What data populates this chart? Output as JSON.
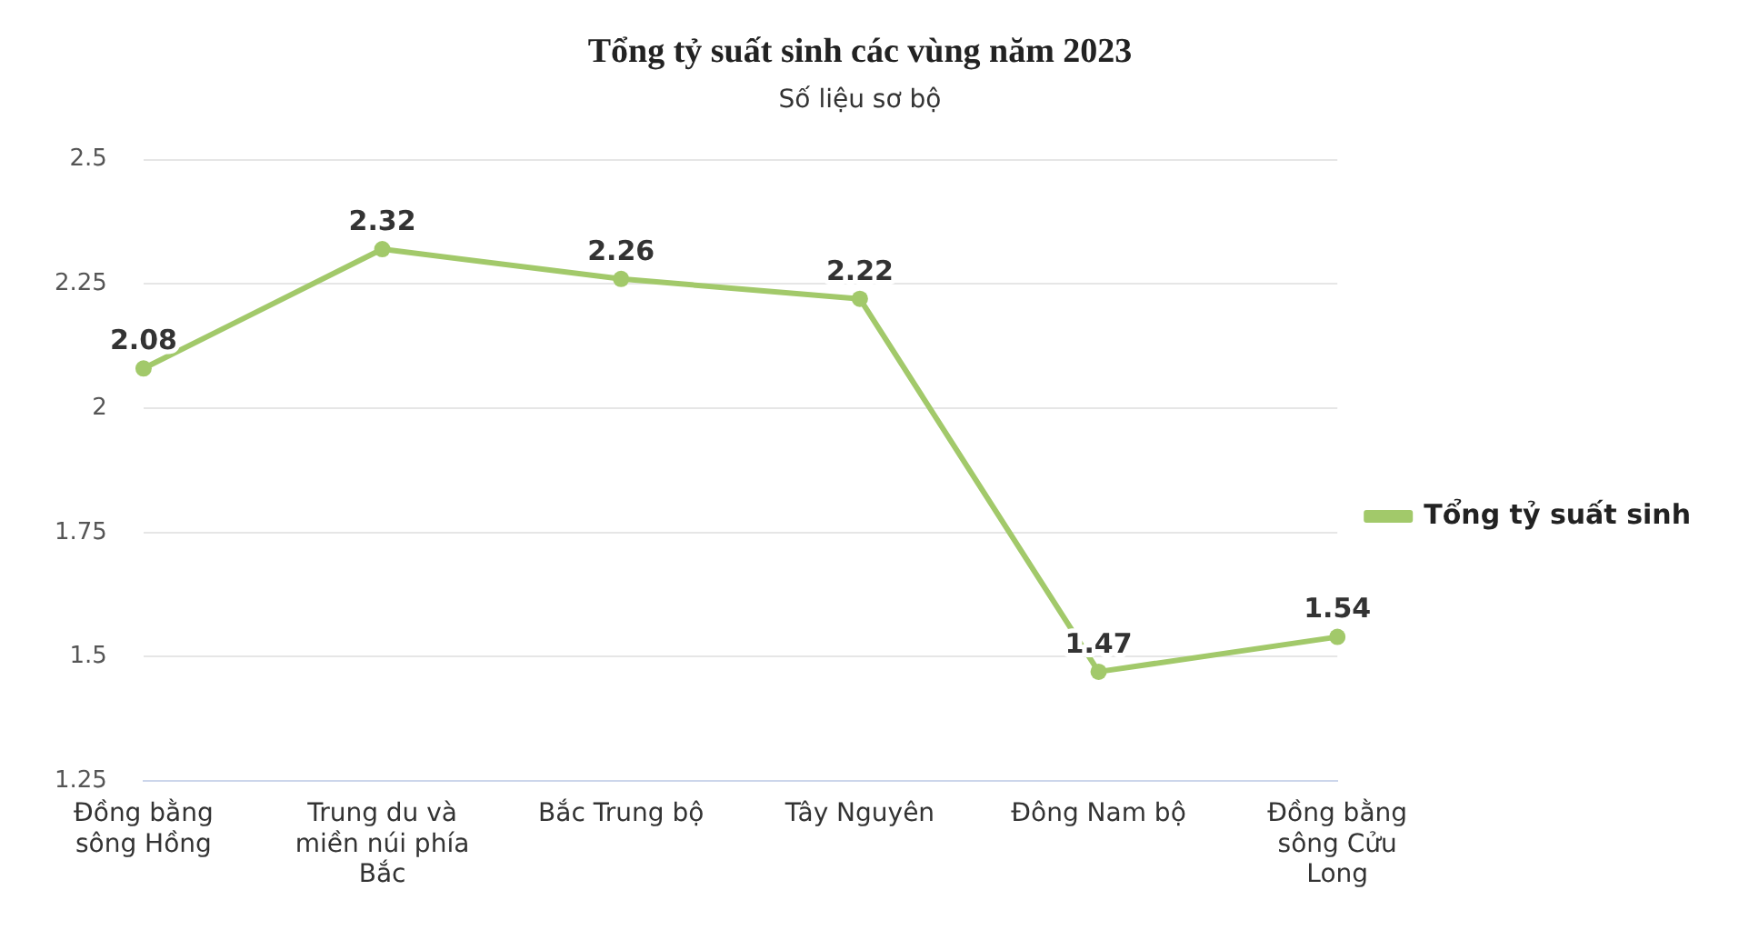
{
  "chart_data": {
    "type": "line",
    "title": "Tổng tỷ suất sinh các vùng năm 2023",
    "subtitle": "Số liệu sơ bộ",
    "categories": [
      "Đồng bằng sông Hồng",
      "Trung du và miền núi phía Bắc",
      "Bắc Trung bộ",
      "Tây Nguyên",
      "Đông Nam bộ",
      "Đồng bằng sông Cửu Long"
    ],
    "series": [
      {
        "name": "Tổng tỷ suất sinh",
        "color": "#a2c96a",
        "values": [
          2.08,
          2.32,
          2.26,
          2.22,
          1.47,
          1.54
        ]
      }
    ],
    "ylim": [
      1.25,
      2.5
    ],
    "yticks": [
      1.25,
      1.5,
      1.75,
      2,
      2.25,
      2.5
    ],
    "grid": "y",
    "legend": "right",
    "marker": "circle",
    "data_labels": true
  }
}
